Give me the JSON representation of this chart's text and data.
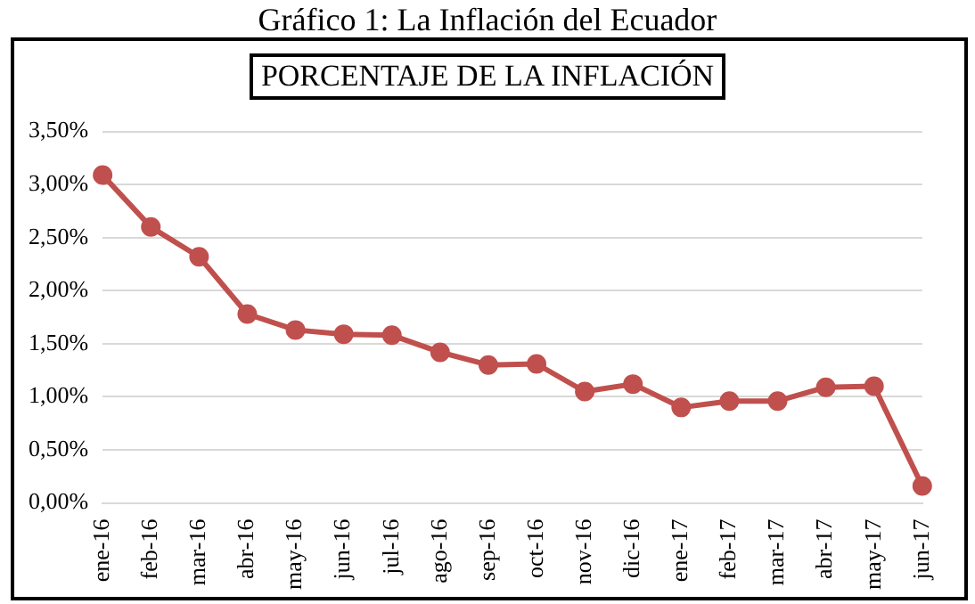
{
  "chart_data": {
    "type": "line",
    "title": "Gráfico 1: La Inflación del Ecuador",
    "subtitle": "PORCENTAJE DE LA INFLACIÓN",
    "categories": [
      "ene-16",
      "feb-16",
      "mar-16",
      "abr-16",
      "may-16",
      "jun-16",
      "jul-16",
      "ago-16",
      "sep-16",
      "oct-16",
      "nov-16",
      "dic-16",
      "ene-17",
      "feb-17",
      "mar-17",
      "abr-17",
      "may-17",
      "jun-17"
    ],
    "series": [
      {
        "color": "#c0504d",
        "values": [
          3.09,
          2.6,
          2.32,
          1.78,
          1.63,
          1.59,
          1.58,
          1.42,
          1.3,
          1.31,
          1.05,
          1.12,
          0.9,
          0.96,
          0.96,
          1.09,
          1.1,
          0.16
        ]
      }
    ],
    "ylim": [
      0,
      3.5
    ],
    "yticks": [
      {
        "value": 0,
        "label": "0,00%"
      },
      {
        "value": 0.5,
        "label": "0,50%"
      },
      {
        "value": 1,
        "label": "1,00%"
      },
      {
        "value": 1.5,
        "label": "1,50%"
      },
      {
        "value": 2,
        "label": "2,00%"
      },
      {
        "value": 2.5,
        "label": "2,50%"
      },
      {
        "value": 3,
        "label": "3,00%"
      },
      {
        "value": 3.5,
        "label": "3,50%"
      }
    ],
    "grid": "y",
    "legend": false,
    "marker": "circle",
    "line_style": "solid"
  }
}
